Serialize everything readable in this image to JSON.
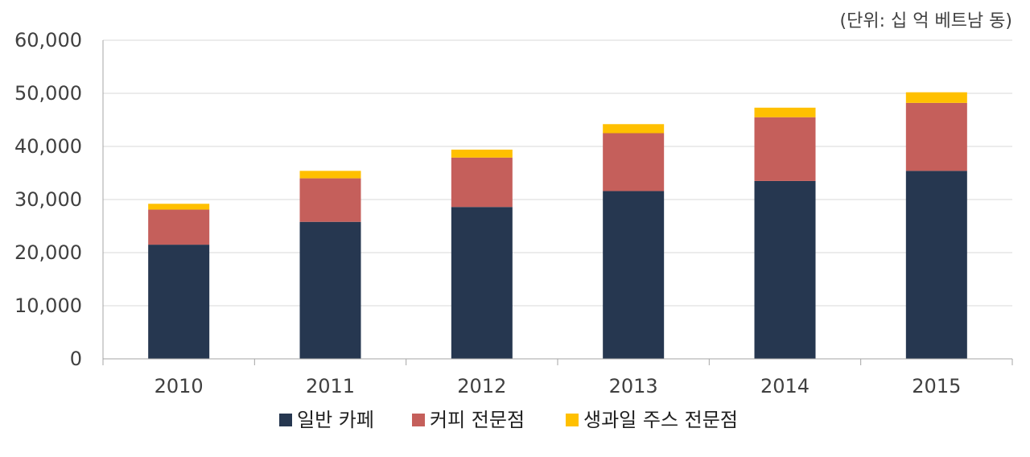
{
  "unit_label": "(단위: 십 억 베트남 동)",
  "chart_data": {
    "type": "bar",
    "stacked": true,
    "categories": [
      "2010",
      "2011",
      "2012",
      "2013",
      "2014",
      "2015"
    ],
    "series": [
      {
        "name": "일반 카페",
        "color": "#263750",
        "values": [
          21500,
          25800,
          28600,
          31600,
          33500,
          35400
        ]
      },
      {
        "name": "커피 전문점",
        "color": "#c55f5b",
        "values": [
          6600,
          8200,
          9300,
          10900,
          12000,
          12800
        ]
      },
      {
        "name": "생과일 주스 전문점",
        "color": "#ffc000",
        "values": [
          1100,
          1400,
          1500,
          1700,
          1800,
          2000
        ]
      }
    ],
    "ylim": [
      0,
      60000
    ],
    "yticks": [
      "0",
      "10,000",
      "20,000",
      "30,000",
      "40,000",
      "50,000",
      "60,000"
    ],
    "ytick_values": [
      0,
      10000,
      20000,
      30000,
      40000,
      50000,
      60000
    ],
    "grid": true,
    "legend": "bottom-center"
  }
}
